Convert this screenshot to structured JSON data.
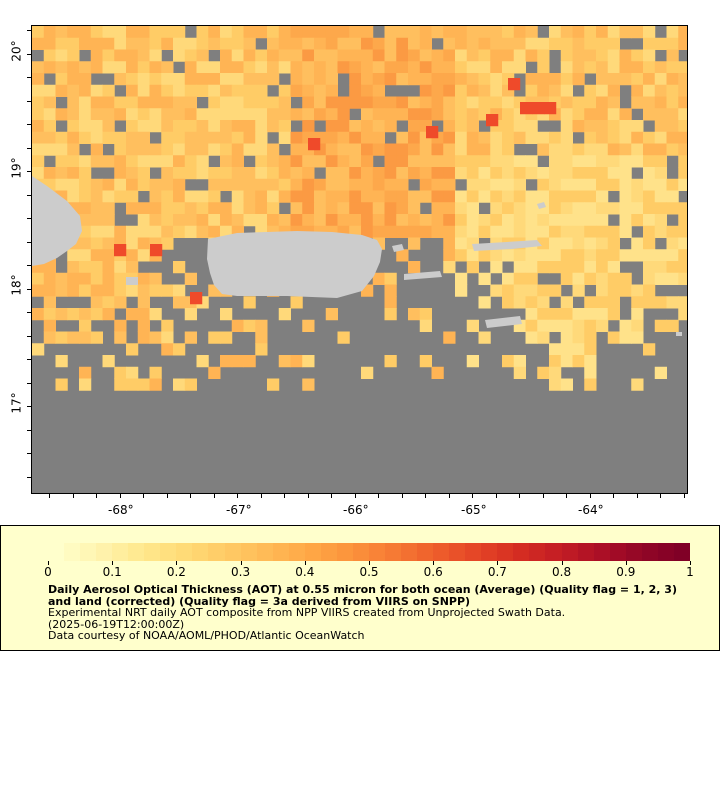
{
  "map": {
    "colors": {
      "ocean_nodata": "#7f7f7f",
      "land": "#cccccc",
      "scale": [
        "#ffffcc",
        "#fff4b0",
        "#ffe98f",
        "#ffdc78",
        "#ffcc66",
        "#ffbb57",
        "#ffa947",
        "#fc943c",
        "#f77c35",
        "#ef612c",
        "#e54727",
        "#d72f22",
        "#c51e24",
        "#ad1026",
        "#920626",
        "#800026"
      ]
    },
    "lon_labels": [
      "-68°",
      "-67°",
      "-66°",
      "-65°",
      "-64°"
    ],
    "lat_labels": [
      "20°",
      "19°",
      "18°",
      "17°"
    ]
  },
  "legend": {
    "ticks": [
      "0",
      "0.1",
      "0.2",
      "0.3",
      "0.4",
      "0.5",
      "0.6",
      "0.7",
      "0.8",
      "0.9",
      "1"
    ],
    "title": "Daily Aerosol Optical Thickness (AOT) at 0.55 micron for both ocean (Average) (Quality flag = 1, 2, 3) and land (corrected) (Quality flag = 3a derived from VIIRS on SNPP)",
    "line2": "Experimental NRT daily AOT composite from NPP VIIRS created from Unprojected Swath Data.",
    "line3": "(2025-06-19T12:00:00Z)",
    "line4": "Data courtesy of NOAA/AOML/PHOD/Atlantic OceanWatch"
  }
}
